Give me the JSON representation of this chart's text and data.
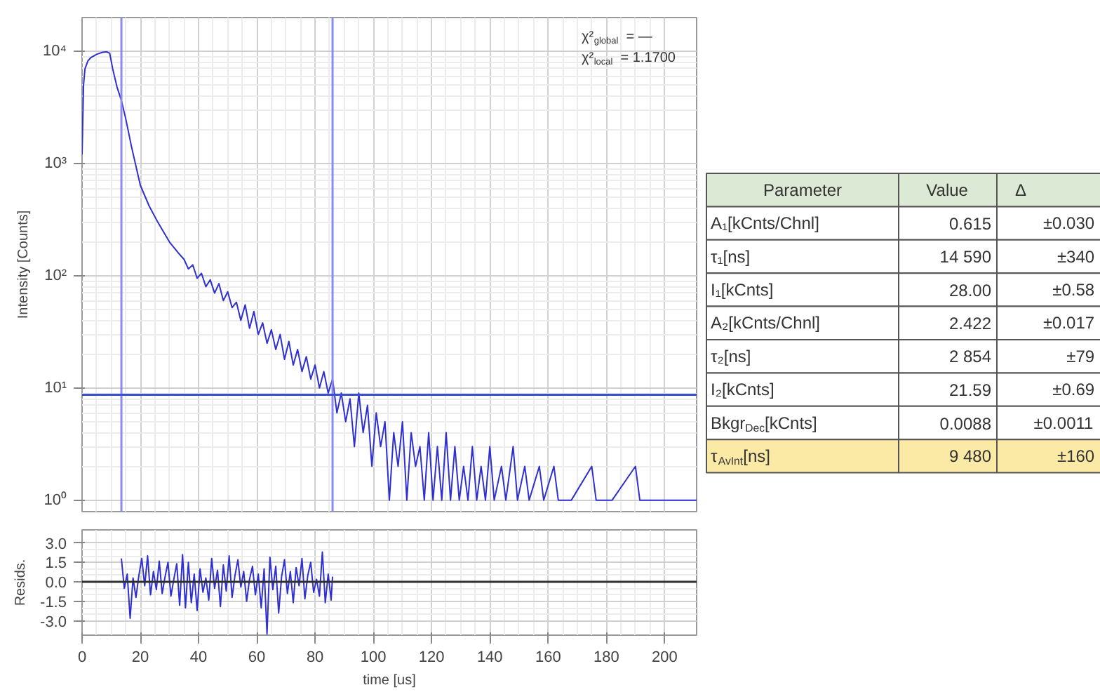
{
  "chart_data": [
    {
      "type": "line",
      "ylabel": "Intensity [Counts]",
      "log": "y",
      "grid": true,
      "tick_labels": "y",
      "line_style": "solid",
      "xlim": [
        0,
        211
      ],
      "ylim": [
        0.79,
        20000
      ],
      "xticks": [
        0,
        20,
        40,
        60,
        80,
        100,
        120,
        140,
        160,
        180,
        200
      ],
      "yticks": [
        {
          "value": 1,
          "label": "10⁰"
        },
        {
          "value": 10,
          "label": "10¹"
        },
        {
          "value": 100,
          "label": "10²"
        },
        {
          "value": 1000,
          "label": "10³"
        },
        {
          "value": 10000,
          "label": "10⁴"
        }
      ],
      "annotations": [
        "χ²$_{global}$ = —",
        "χ²$_{local}$ = 1.1700"
      ],
      "ref_lines": [
        {
          "axis": "x",
          "value": 13.5,
          "color": "#8c8cf0"
        },
        {
          "axis": "x",
          "value": 86,
          "color": "#8c8cf0"
        },
        {
          "axis": "y",
          "value": 8.7,
          "color": "#3a4fd0"
        }
      ],
      "series": [
        {
          "color": "#3030d0",
          "x": [
            0,
            0.5,
            1,
            2,
            3,
            5,
            7,
            8.5,
            9.5,
            10.5,
            12,
            13.5,
            15,
            17,
            20,
            23,
            26,
            30,
            33,
            35,
            36.5,
            38,
            39.5,
            41,
            42.5,
            44,
            45.5,
            47,
            48.5,
            50,
            51.5,
            53,
            54.5,
            56,
            57.5,
            59,
            60.5,
            62,
            63.5,
            65,
            66.5,
            68,
            69.5,
            71,
            72.5,
            74,
            75.5,
            77,
            78.5,
            80,
            81.5,
            83,
            84.5,
            86,
            87.5,
            89,
            90.5,
            92,
            93.5,
            95,
            96.5,
            98,
            99.5,
            101,
            102.5,
            104,
            105.5,
            107,
            108.5,
            110,
            111.5,
            113,
            114.5,
            116,
            117.5,
            119,
            120.5,
            122,
            123.5,
            125,
            126.5,
            128,
            129.5,
            131,
            132.5,
            134,
            135.5,
            137,
            138.5,
            140,
            141.5,
            144,
            145.5,
            148,
            149.5,
            152,
            153.5,
            157,
            158.5,
            162,
            163.5,
            168,
            175,
            176.5,
            182,
            190,
            191.5,
            200,
            211
          ],
          "values": [
            1200,
            5000,
            7000,
            8200,
            8800,
            9400,
            9800,
            9900,
            9600,
            7000,
            4800,
            3650,
            2500,
            1400,
            640,
            420,
            300,
            200,
            160,
            140,
            115,
            125,
            95,
            105,
            80,
            92,
            70,
            85,
            60,
            72,
            52,
            58,
            40,
            55,
            34,
            48,
            30,
            38,
            25,
            33,
            22,
            30,
            18,
            26,
            16,
            22,
            14,
            19,
            12,
            16,
            10,
            14,
            9,
            12,
            6,
            9,
            5,
            8,
            3,
            9,
            4,
            7,
            2,
            6,
            3,
            5,
            1,
            4,
            2,
            5,
            1,
            4,
            2,
            3,
            1,
            4,
            1,
            3,
            1,
            4,
            1,
            3,
            1,
            2,
            1,
            3,
            1,
            2,
            1,
            3,
            1,
            2,
            1,
            3,
            1,
            2,
            1,
            2,
            1,
            2,
            1,
            1,
            2,
            1,
            1,
            2,
            1,
            1,
            1
          ]
        }
      ]
    },
    {
      "type": "line",
      "xlabel": "time [us]",
      "ylabel": "Resids.",
      "grid": true,
      "line_style": "solid",
      "xlim": [
        0,
        211
      ],
      "ylim": [
        -4.1,
        4.0
      ],
      "xticks": [
        0,
        20,
        40,
        60,
        80,
        100,
        120,
        140,
        160,
        180,
        200
      ],
      "yticks": [
        {
          "value": -3,
          "label": "-3.0"
        },
        {
          "value": -1.5,
          "label": "-1.5"
        },
        {
          "value": 0,
          "label": "0.0"
        },
        {
          "value": 1.5,
          "label": "1.5"
        },
        {
          "value": 3,
          "label": "3.0"
        }
      ],
      "ref_lines": [
        {
          "axis": "y",
          "value": 0,
          "color": "#303030"
        }
      ],
      "series": [
        {
          "color": "#3030d0",
          "x": [
            13.5,
            14.5,
            15.5,
            16.5,
            17.5,
            18.5,
            19.5,
            20.5,
            21.5,
            22.5,
            23.5,
            24.5,
            25.5,
            26.5,
            27.5,
            28.5,
            29.5,
            30.5,
            31.5,
            32.5,
            33.5,
            34.5,
            35.5,
            36.5,
            37.5,
            38.5,
            39.5,
            40.5,
            41.5,
            42.5,
            43.5,
            44.5,
            45.5,
            46.5,
            47.5,
            48.5,
            49.5,
            50.5,
            51.5,
            52.5,
            53.5,
            54.5,
            55.5,
            56.5,
            57.5,
            58.5,
            59.5,
            60.5,
            61.5,
            62.5,
            63.5,
            64.5,
            65.5,
            66.5,
            67.5,
            68.5,
            69.5,
            70.5,
            71.5,
            72.5,
            73.5,
            74.5,
            75.5,
            76.5,
            77.5,
            78.5,
            79.5,
            80.5,
            81.5,
            82.5,
            83.5,
            84.5,
            85.5,
            86
          ],
          "values": [
            1.8,
            -0.5,
            0.6,
            -2.8,
            0.3,
            -1.2,
            0.5,
            1.8,
            -0.3,
            2.0,
            -1.0,
            0.8,
            -0.6,
            1.6,
            -0.9,
            0.4,
            1.5,
            -1.1,
            0.2,
            1.4,
            -1.8,
            2.1,
            -2.0,
            1.5,
            -1.6,
            0.6,
            -2.2,
            1.0,
            -0.8,
            0.3,
            -1.4,
            1.8,
            -0.5,
            0.9,
            -1.9,
            1.3,
            -0.7,
            2.0,
            -1.2,
            0.5,
            1.7,
            -0.4,
            0.8,
            -1.5,
            0.2,
            1.2,
            -1.0,
            0.6,
            -2.0,
            1.0,
            -4.0,
            1.9,
            -0.6,
            1.2,
            -2.4,
            0.4,
            1.7,
            -0.9,
            0.8,
            -1.6,
            1.1,
            -0.3,
            1.8,
            -1.3,
            0.5,
            1.5,
            -0.8,
            0.2,
            -1.1,
            2.3,
            -1.6,
            0.6,
            -1.4,
            0.4
          ]
        }
      ]
    },
    {
      "type": "other",
      "colors": [
        "#dce9d5",
        "#ffffff",
        "#ffffff",
        "#ffffff",
        "#ffffff",
        "#ffffff",
        "#ffffff",
        "#ffffff",
        "#fbe9a6"
      ],
      "annotations": [
        "Parameter",
        "Value",
        "Δ",
        "A₁[kCnts/Chnl]",
        "0.615",
        "±0.030",
        "τ₁[ns]",
        "14 590",
        "±340",
        "I₁[kCnts]",
        "28.00",
        "±0.58",
        "A₂[kCnts/Chnl]",
        "2.422",
        "±0.017",
        "τ₂[ns]",
        "2 854",
        "±79",
        "I₂[kCnts]",
        "21.59",
        "±0.69",
        "Bkgr$_{Dec}$[kCnts]",
        "0.0088",
        "±0.0011",
        "τ$_{AvInt}$[ns]",
        "9 480",
        "±160"
      ]
    }
  ]
}
